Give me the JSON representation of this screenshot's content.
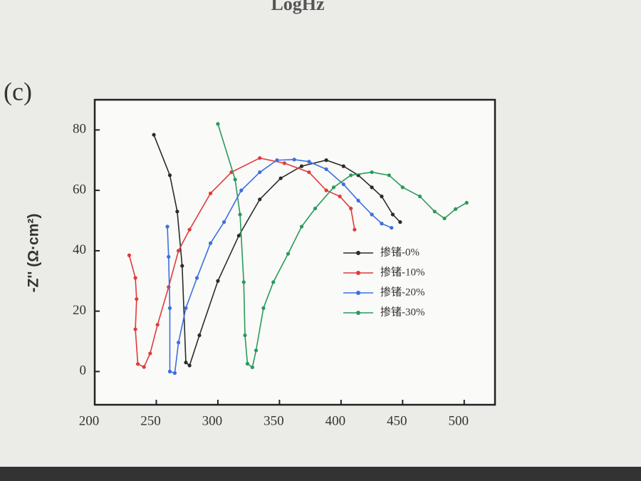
{
  "chart_data": {
    "type": "line",
    "annotations": [
      "LogHz",
      "(c)"
    ],
    "y_label": "-Z'' (Ω·cm²)",
    "xlim": [
      200,
      525
    ],
    "ylim": [
      -11,
      90
    ],
    "xticks": [
      200,
      250,
      300,
      350,
      400,
      450,
      500
    ],
    "yticks": [
      0,
      20,
      40,
      60,
      80
    ],
    "legend": "center-right",
    "series": [
      {
        "name": "掺锗-0%",
        "color": "#2b2b2b",
        "x": [
          248,
          261,
          267,
          271,
          274,
          277,
          285,
          300,
          317,
          334,
          351,
          368,
          388,
          402,
          414,
          425,
          433,
          442,
          448
        ],
        "values": [
          78.4,
          65,
          53,
          35,
          3,
          2,
          12,
          30,
          45,
          57,
          64,
          68,
          70,
          68,
          65,
          61,
          58,
          52,
          49.5
        ]
      },
      {
        "name": "掺锗-10%",
        "color": "#e03a3a",
        "x": [
          228,
          233,
          234,
          233,
          235,
          240,
          245,
          251,
          260,
          268,
          277,
          294,
          311,
          334,
          354,
          374,
          388,
          399,
          408,
          411
        ],
        "values": [
          38.5,
          31,
          24,
          14,
          2.5,
          1.5,
          6,
          15.5,
          28,
          40,
          47,
          59,
          66,
          70.7,
          69,
          66,
          60,
          58,
          54,
          47
        ]
      },
      {
        "name": "掺锗-20%",
        "color": "#3a6fe0",
        "x": [
          259,
          260,
          261,
          261,
          265,
          268,
          274,
          283,
          294,
          305,
          319,
          334,
          348,
          362,
          374,
          388,
          402,
          414,
          425,
          433,
          441
        ],
        "values": [
          48,
          38,
          21,
          0,
          -0.5,
          9.6,
          21,
          31,
          42.5,
          49.5,
          60,
          66,
          70,
          70.2,
          69.5,
          67,
          62,
          56.6,
          52,
          49,
          47.6
        ]
      },
      {
        "name": "掺锗-30%",
        "color": "#2a9a5a",
        "x": [
          300,
          314,
          318,
          321,
          322,
          324,
          328,
          331,
          337,
          345,
          357,
          368,
          379,
          394,
          408,
          425,
          439,
          450,
          464,
          476,
          484,
          493,
          502
        ],
        "values": [
          82,
          63.6,
          52,
          29.6,
          12,
          2.6,
          1.4,
          7,
          21,
          29.6,
          39,
          48,
          54,
          61,
          65,
          66,
          65,
          61,
          58,
          53,
          50.7,
          53.8,
          55.9
        ]
      }
    ]
  }
}
